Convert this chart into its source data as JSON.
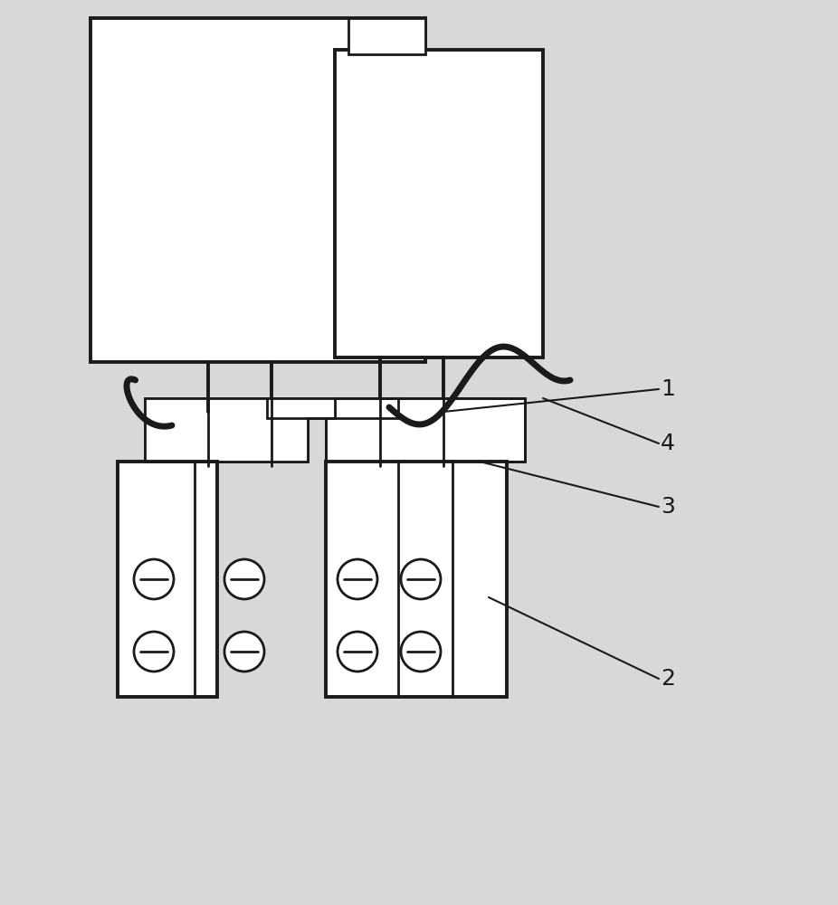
{
  "bg_color": "#d8d8d8",
  "line_color": "#1a1a1a",
  "lw_thick": 2.8,
  "lw_medium": 2.0,
  "lw_thin": 1.5,
  "wire_lw": 5.0,
  "label_fontsize": 18,
  "fig_w": 9.26,
  "fig_h": 10.0,
  "dpi": 100
}
